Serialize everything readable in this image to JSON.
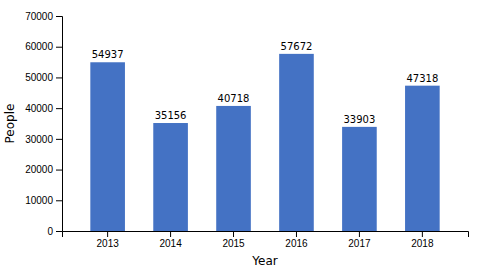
{
  "chart_data": {
    "type": "bar",
    "categories": [
      "2013",
      "2014",
      "2015",
      "2016",
      "2017",
      "2018"
    ],
    "values": [
      54937,
      35156,
      40718,
      57672,
      33903,
      47318
    ],
    "color": "#4472C4",
    "x_label": "Year",
    "y_label": "People",
    "ylim": [
      0,
      70000
    ],
    "yticks": [
      0,
      10000,
      20000,
      30000,
      40000,
      50000,
      60000,
      70000
    ],
    "grid": false,
    "data_labels": true
  }
}
